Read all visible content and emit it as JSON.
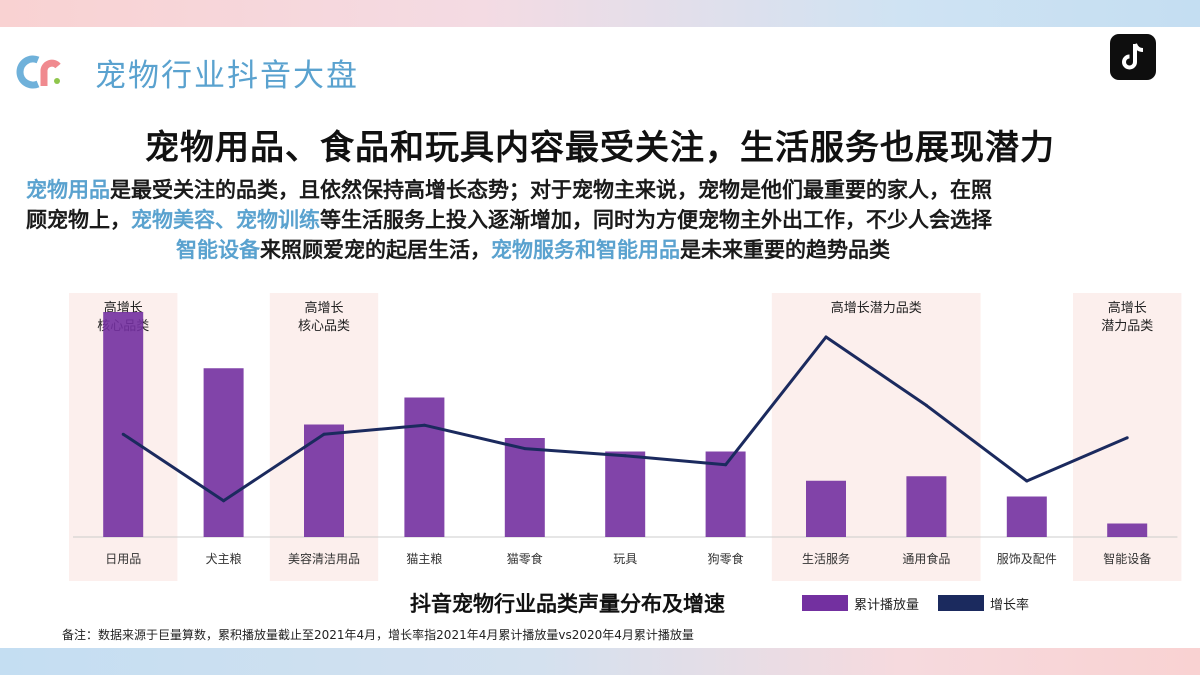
{
  "header": {
    "title": "宠物行业抖音大盘",
    "logo_icon": "brand-logo-icon",
    "app_icon": "tiktok-icon"
  },
  "headline": "宠物用品、食品和玩具内容最受关注，生活服务也展现潜力",
  "intro": {
    "line1": [
      {
        "text": "宠物用品",
        "highlight": true
      },
      {
        "text": "是最受关注的品类，且依然保持高增长态势；对于宠物主来说，宠物是他们最重要的家人，在照",
        "highlight": false
      }
    ],
    "line2": [
      {
        "text": "顾宠物上，",
        "highlight": false
      },
      {
        "text": "宠物美容、宠物训练",
        "highlight": true
      },
      {
        "text": "等生活服务上投入逐渐增加，同时为方便宠物主外出工作，不少人会选择",
        "highlight": false
      }
    ],
    "line3": [
      {
        "text": "智能设备",
        "highlight": true
      },
      {
        "text": "来照顾爱宠的起居生活，",
        "highlight": false
      },
      {
        "text": "宠物服务和智能用品",
        "highlight": true
      },
      {
        "text": "是未来重要的趋势品类",
        "highlight": false
      }
    ]
  },
  "chart_data": {
    "type": "bar",
    "title": "抖音宠物行业品类声量分布及增速",
    "categories": [
      "日用品",
      "犬主粮",
      "美容清洁用品",
      "猫主粮",
      "猫零食",
      "玩具",
      "狗零食",
      "生活服务",
      "通用食品",
      "服饰及配件",
      "智能设备"
    ],
    "series": [
      {
        "name": "累计播放量",
        "type": "bar",
        "color": "#7330a0",
        "values": [
          100,
          75,
          50,
          62,
          44,
          38,
          38,
          25,
          27,
          18,
          6
        ]
      },
      {
        "name": "增长率",
        "type": "line",
        "color": "#1b2a5e",
        "values": [
          46,
          9,
          46,
          51,
          38,
          34,
          29,
          100,
          62,
          20,
          44
        ]
      }
    ],
    "bar_ylim": [
      0,
      100
    ],
    "line_ylim": [
      0,
      100
    ],
    "units": "relative (no axis printed)",
    "highlight_groups": [
      {
        "label": "高增长\n核心品类",
        "from": 0,
        "to": 0
      },
      {
        "label": "高增长\n核心品类",
        "from": 2,
        "to": 2
      },
      {
        "label": "高增长潜力品类",
        "from": 7,
        "to": 8
      },
      {
        "label": "高增长\n潜力品类",
        "from": 10,
        "to": 10
      }
    ],
    "highlight_color": "#fcefed",
    "legend": "bottom-right",
    "grid": false
  },
  "footnote": "备注：数据来源于巨量算数，累积播放量截止至2021年4月，增长率指2021年4月累计播放量vs2020年4月累计播放量"
}
